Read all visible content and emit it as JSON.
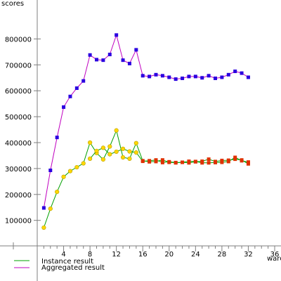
{
  "chart_data": {
    "type": "line",
    "ylabel": "scores",
    "xlabel": "warc",
    "xlim": [
      0,
      36
    ],
    "ylim": [
      0,
      900000
    ],
    "x_ticks": [
      4,
      8,
      12,
      16,
      20,
      24,
      28,
      32,
      36
    ],
    "y_ticks": [
      100000,
      200000,
      300000,
      400000,
      500000,
      600000,
      700000,
      800000
    ],
    "grid": false,
    "legend_position": "bottom-left",
    "series": [
      {
        "name": "Instance result",
        "line_color": "#00a000",
        "early_marker_color": "#ffd700",
        "late_marker_color": "#e03000",
        "x": [
          1,
          2,
          3,
          4,
          5,
          6,
          7,
          8,
          9,
          10,
          11,
          12,
          13,
          14,
          15,
          16,
          17,
          18,
          19,
          20,
          21,
          22,
          23,
          24,
          25,
          26,
          27,
          28,
          29,
          30,
          31,
          32
        ],
        "values": [
          72000,
          145000,
          210000,
          268000,
          290000,
          305000,
          320000,
          400000,
          360000,
          335000,
          385000,
          447000,
          343000,
          338000,
          398000,
          330000,
          326000,
          327000,
          333000,
          324000,
          322000,
          324000,
          328000,
          327000,
          322000,
          322000,
          323000,
          324000,
          327000,
          343000,
          330000,
          325000
        ]
      },
      {
        "name": "Aggregated result",
        "line_color": "#c000c0",
        "early_marker_color": "#2a00e0",
        "late_marker_color": "#2a00e0",
        "x": [
          1,
          2,
          3,
          4,
          5,
          6,
          7,
          8,
          9,
          10,
          11,
          12,
          13,
          14,
          15,
          16,
          17,
          18,
          19,
          20,
          21,
          22,
          23,
          24,
          25,
          26,
          27,
          28,
          29,
          30,
          31,
          32
        ],
        "values": [
          148000,
          293000,
          420000,
          537000,
          578000,
          610000,
          638000,
          738000,
          720000,
          718000,
          740000,
          815000,
          718000,
          705000,
          758000,
          658000,
          655000,
          662000,
          658000,
          652000,
          645000,
          648000,
          655000,
          655000,
          650000,
          658000,
          648000,
          652000,
          662000,
          675000,
          668000,
          652000
        ]
      },
      {
        "name": "",
        "line_color": "#00a000",
        "early_marker_color": "#ffd700",
        "late_marker_color": "#e03000",
        "x": [
          8,
          9,
          10,
          11,
          12,
          13,
          14,
          15,
          16,
          17,
          18,
          19,
          20,
          21,
          22,
          23,
          24,
          25,
          26,
          27,
          28,
          29,
          30,
          31,
          32
        ],
        "values": [
          338000,
          368000,
          380000,
          355000,
          365000,
          376000,
          366000,
          362000,
          328000,
          330000,
          333000,
          323000,
          326000,
          323000,
          324000,
          322000,
          326000,
          328000,
          336000,
          327000,
          331000,
          332000,
          336000,
          333000,
          318000
        ]
      }
    ]
  },
  "legend": {
    "instance_label": "Instance result",
    "aggregated_label": "Aggregated result"
  }
}
